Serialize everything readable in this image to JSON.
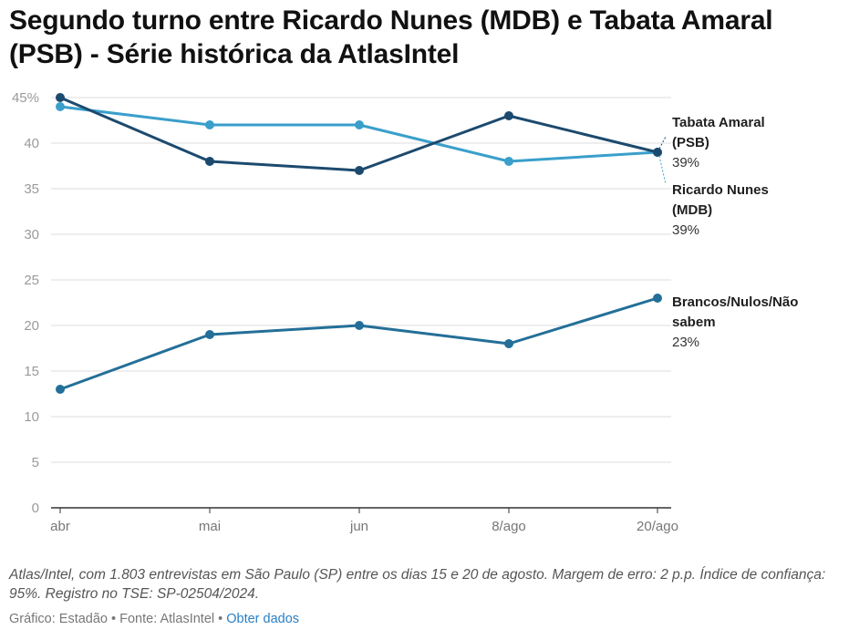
{
  "chart_data": {
    "type": "line",
    "title": "Segundo turno entre Ricardo Nunes (MDB) e Tabata Amaral (PSB) - Série histórica da AtlasIntel",
    "xlabel": "",
    "ylabel": "",
    "categories": [
      "abr",
      "mai",
      "jun",
      "8/ago",
      "20/ago"
    ],
    "ylim": [
      0,
      45
    ],
    "yticks": [
      "0",
      "5",
      "10",
      "15",
      "20",
      "25",
      "30",
      "35",
      "40",
      "45%"
    ],
    "grid": true,
    "series": [
      {
        "name": "Tabata Amaral (PSB)",
        "label_lines": [
          "Tabata Amaral",
          "(PSB)"
        ],
        "value_label": "39%",
        "color": "#3a9fcb",
        "values": [
          44,
          42,
          42,
          38,
          39
        ]
      },
      {
        "name": "Ricardo Nunes (MDB)",
        "label_lines": [
          "Ricardo Nunes",
          "(MDB)"
        ],
        "value_label": "39%",
        "color": "#1c4a6e",
        "values": [
          45,
          38,
          37,
          43,
          39
        ]
      },
      {
        "name": "Brancos/Nulos/Não sabem",
        "label_lines": [
          "Brancos/Nulos/Não",
          "sabem"
        ],
        "value_label": "23%",
        "color": "#236f98",
        "values": [
          13,
          19,
          20,
          18,
          23
        ]
      }
    ]
  },
  "note": "Atlas/Intel, com 1.803 entrevistas em São Paulo (SP) entre os dias 15 e 20 de agosto. Margem de erro: 2 p.p. Índice de confiança: 95%. Registro no TSE: SP-02504/2024.",
  "footer": {
    "credit": "Gráfico: Estadão • Fonte: AtlasIntel •",
    "link": "Obter dados"
  }
}
